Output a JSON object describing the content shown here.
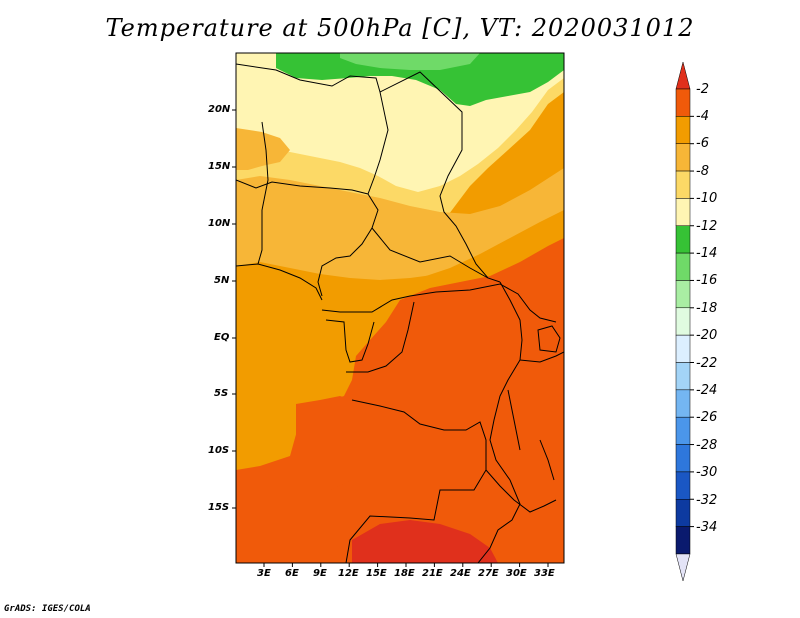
{
  "title": "Temperature at 500hPa [C], VT: 2020031012",
  "credit": "GrADS: IGES/COLA",
  "lat_labels": [
    "20N",
    "15N",
    "10N",
    "5N",
    "EQ",
    "5S",
    "10S",
    "15S"
  ],
  "lon_labels": [
    "3E",
    "6E",
    "9E",
    "12E",
    "15E",
    "18E",
    "21E",
    "24E",
    "27E",
    "30E",
    "33E"
  ],
  "colorbar": {
    "labels": [
      "-2",
      "-4",
      "-6",
      "-8",
      "-10",
      "-12",
      "-14",
      "-16",
      "-18",
      "-20",
      "-22",
      "-24",
      "-26",
      "-28",
      "-30",
      "-32",
      "-34"
    ],
    "colors": [
      "#e0301c",
      "#f05a0a",
      "#f29c00",
      "#f7b637",
      "#fcd966",
      "#fff5b3",
      "#36c235",
      "#6fda68",
      "#a9eea3",
      "#e0fbe0",
      "#dcefff",
      "#a3d4f7",
      "#74b6f2",
      "#4b96ea",
      "#2e77dc",
      "#1a57c4",
      "#0d3aa0",
      "#0a1a6e",
      "#e4e4f7"
    ]
  },
  "map_colors": {
    "lt2": "#f05a0a",
    "lt4": "#f29c00",
    "lt6": "#f7b637",
    "lt8": "#fcd966",
    "lt10": "#fff5b3",
    "lt12": "#36c235",
    "lt14": "#6fda68",
    "red": "#e0301c"
  }
}
